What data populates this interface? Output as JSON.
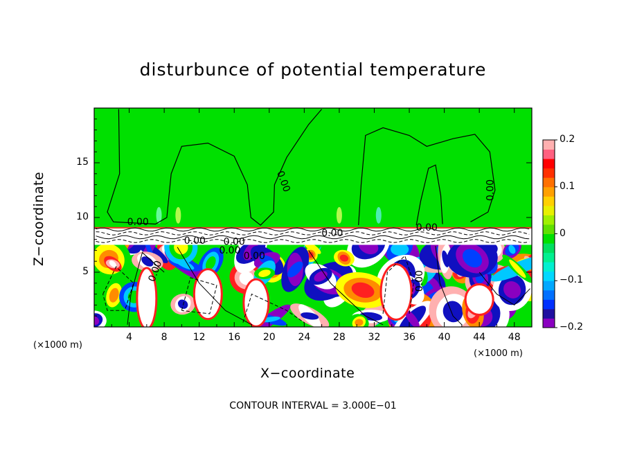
{
  "chart_data": {
    "type": "heatmap",
    "title": "disturbunce of potential temperature",
    "xlabel": "X−coordinate",
    "ylabel": "Z−coordinate",
    "x_unit_label": "(×1000 m)",
    "x_unit_label_right": "(×1000 m)",
    "x_ticks": [
      4,
      8,
      12,
      16,
      20,
      24,
      28,
      32,
      36,
      40,
      44,
      48
    ],
    "y_ticks": [
      5,
      10,
      15
    ],
    "xlim": [
      0,
      50
    ],
    "ylim": [
      0,
      20
    ],
    "colorbar": {
      "ticks": [
        "0.2",
        "0.1",
        "0",
        "−0.1",
        "−0.2"
      ],
      "range": [
        -0.2,
        0.2
      ]
    },
    "contour_labels": [
      "0.00",
      "0.00",
      "0.00",
      "0.00",
      "0.00",
      "0.00",
      "0.00",
      "0.00",
      "0.00",
      "0.00",
      "0.00"
    ],
    "footer": "CONTOUR INTERVAL = 3.000E−01"
  }
}
